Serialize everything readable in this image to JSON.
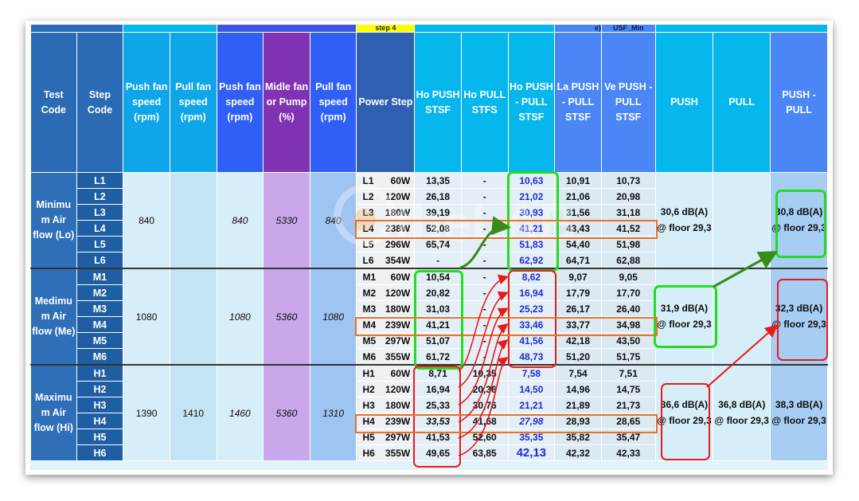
{
  "top_labels": {
    "step4": "step 4",
    "e": "e)",
    "usf": "USF_Min"
  },
  "headers": [
    "Test Code",
    "Step Code",
    "Push fan speed (rpm)",
    "Pull fan speed (rpm)",
    "Push fan speed (rpm)",
    "Midle fan or Pump (%)",
    "Pull fan speed (rpm)",
    "Power Step",
    "Ho PUSH STSF",
    "Ho PULL STFS",
    "Ho PUSH - PULL STSF",
    "La PUSH - PULL STSF",
    "Ve PUSH - PULL STSF",
    "PUSH",
    "PULL",
    "PUSH - PULL"
  ],
  "groups": [
    {
      "test_code": "Minimu m Air flow (Lo)",
      "push_speed": "840",
      "pull_speed": "",
      "push_speed2": "840",
      "middle": "5330",
      "pull_speed2": "840",
      "push_summary": "30,6 dB(A) @ floor 29,3",
      "pull_summary": "",
      "pushpull_summary": "30,8 dB(A) @ floor 29,3",
      "rows": [
        {
          "step": "L1",
          "power": "L1",
          "watt": "60W",
          "ho_push": "13,35",
          "ho_pull": "-",
          "ho_pp": "10,63",
          "la": "10,91",
          "ve": "10,73"
        },
        {
          "step": "L2",
          "power": "L2",
          "watt": "120W",
          "ho_push": "26,18",
          "ho_pull": "-",
          "ho_pp": "21,02",
          "la": "21,06",
          "ve": "20,98"
        },
        {
          "step": "L3",
          "power": "L3",
          "watt": "180W",
          "ho_push": "39,19",
          "ho_pull": "-",
          "ho_pp": "30,93",
          "la": "31,56",
          "ve": "31,18"
        },
        {
          "step": "L4",
          "power": "L4",
          "watt": "238W",
          "ho_push": "52,08",
          "ho_pull": "-",
          "ho_pp": "41,21",
          "la": "43,43",
          "ve": "41,52"
        },
        {
          "step": "L5",
          "power": "L5",
          "watt": "296W",
          "ho_push": "65,74",
          "ho_pull": "-",
          "ho_pp": "51,83",
          "la": "54,40",
          "ve": "51,98"
        },
        {
          "step": "L6",
          "power": "L6",
          "watt": "354W",
          "ho_push": "-",
          "ho_pull": "-",
          "ho_pp": "62,92",
          "la": "64,71",
          "ve": "62,88"
        }
      ]
    },
    {
      "test_code": "Medimu m Air flow (Me)",
      "push_speed": "1080",
      "pull_speed": "",
      "push_speed2": "1080",
      "middle": "5360",
      "pull_speed2": "1080",
      "push_summary": "31,9 dB(A) @ floor 29,3",
      "pull_summary": "",
      "pushpull_summary": "32,3 dB(A) @ floor 29,3",
      "rows": [
        {
          "step": "M1",
          "power": "M1",
          "watt": "60W",
          "ho_push": "10,54",
          "ho_pull": "-",
          "ho_pp": "8,62",
          "la": "9,07",
          "ve": "9,05"
        },
        {
          "step": "M2",
          "power": "M2",
          "watt": "120W",
          "ho_push": "20,82",
          "ho_pull": "-",
          "ho_pp": "16,94",
          "la": "17,79",
          "ve": "17,70"
        },
        {
          "step": "M3",
          "power": "M3",
          "watt": "180W",
          "ho_push": "31,03",
          "ho_pull": "-",
          "ho_pp": "25,23",
          "la": "26,17",
          "ve": "26,40"
        },
        {
          "step": "M4",
          "power": "M4",
          "watt": "239W",
          "ho_push": "41,21",
          "ho_pull": "-",
          "ho_pp": "33,46",
          "la": "33,77",
          "ve": "34,98"
        },
        {
          "step": "M5",
          "power": "M5",
          "watt": "297W",
          "ho_push": "51,07",
          "ho_pull": "-",
          "ho_pp": "41,56",
          "la": "42,18",
          "ve": "43,50"
        },
        {
          "step": "M6",
          "power": "M6",
          "watt": "355W",
          "ho_push": "61,72",
          "ho_pull": "-",
          "ho_pp": "48,73",
          "la": "51,20",
          "ve": "51,75"
        }
      ]
    },
    {
      "test_code": "Maximu m Air flow (Hi)",
      "push_speed": "1390",
      "pull_speed": "1410",
      "push_speed2": "1460",
      "middle": "5360",
      "pull_speed2": "1310",
      "push_summary": "36,6 dB(A) @ floor 29,3",
      "pull_summary": "36,8 dB(A) @ floor 29,3",
      "pushpull_summary": "38,3 dB(A) @ floor 29,3",
      "rows": [
        {
          "step": "H1",
          "power": "H1",
          "watt": "60W",
          "ho_push": "8,71",
          "ho_pull": "10,35",
          "ho_pp": "7,58",
          "la": "7,54",
          "ve": "7,51"
        },
        {
          "step": "H2",
          "power": "H2",
          "watt": "120W",
          "ho_push": "16,94",
          "ho_pull": "20,36",
          "ho_pp": "14,50",
          "la": "14,96",
          "ve": "14,75"
        },
        {
          "step": "H3",
          "power": "H3",
          "watt": "180W",
          "ho_push": "25,33",
          "ho_pull": "30,76",
          "ho_pp": "21,21",
          "la": "21,89",
          "ve": "21,73"
        },
        {
          "step": "H4",
          "power": "H4",
          "watt": "239W",
          "ho_push": "33,53",
          "ho_pull": "41,68",
          "ho_pp": "27,98",
          "la": "28,93",
          "ve": "28,65"
        },
        {
          "step": "H5",
          "power": "H5",
          "watt": "297W",
          "ho_push": "41,53",
          "ho_pull": "52,60",
          "ho_pp": "35,35",
          "la": "35,82",
          "ve": "35,47"
        },
        {
          "step": "H6",
          "power": "H6",
          "watt": "355W",
          "ho_push": "49,65",
          "ho_pull": "63,85",
          "ho_pp": "42,13",
          "la": "42,32",
          "ve": "42,33"
        }
      ]
    }
  ],
  "watermark": "theLAB"
}
